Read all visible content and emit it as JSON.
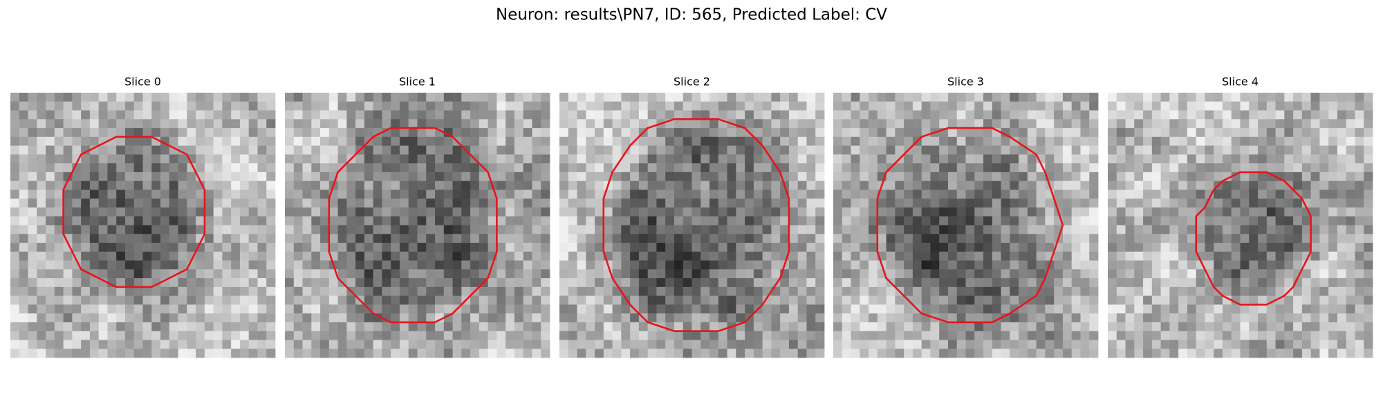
{
  "title": "Neuron: results\\PN7, ID: 565, Predicted Label: CV",
  "panels": [
    {
      "title": "Slice 0"
    },
    {
      "title": "Slice 1"
    },
    {
      "title": "Slice 2"
    },
    {
      "title": "Slice 3"
    },
    {
      "title": "Slice 4"
    }
  ]
}
